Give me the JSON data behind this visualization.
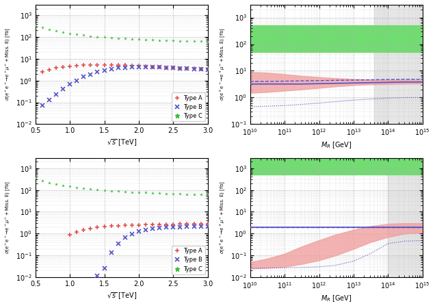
{
  "background_color": "#ffffff",
  "grid_color": "#b0b0b0",
  "gray_region_start_tr": 40000000000000.0,
  "gray_region_start_br": 100000000000000.0,
  "top_left": {
    "xlim": [
      0.5,
      3.0
    ],
    "ylim": [
      0.01,
      3000
    ],
    "typeA_x": [
      0.6,
      0.7,
      0.8,
      0.9,
      1.0,
      1.1,
      1.2,
      1.3,
      1.4,
      1.5,
      1.6,
      1.7,
      1.8,
      1.9,
      2.0,
      2.1,
      2.2,
      2.3,
      2.4,
      2.5,
      2.6,
      2.7,
      2.8,
      2.9,
      3.0
    ],
    "typeA_y": [
      2.5,
      3.2,
      3.8,
      4.2,
      4.5,
      4.8,
      5.0,
      5.1,
      5.2,
      5.3,
      5.2,
      5.1,
      5.0,
      4.9,
      4.7,
      4.5,
      4.3,
      4.2,
      4.0,
      3.9,
      3.7,
      3.6,
      3.5,
      3.4,
      3.3
    ],
    "typeB_x": [
      0.6,
      0.7,
      0.8,
      0.9,
      1.0,
      1.1,
      1.2,
      1.3,
      1.4,
      1.5,
      1.6,
      1.7,
      1.8,
      1.9,
      2.0,
      2.1,
      2.2,
      2.3,
      2.4,
      2.5,
      2.6,
      2.7,
      2.8,
      2.9,
      3.0
    ],
    "typeB_y": [
      0.07,
      0.13,
      0.23,
      0.4,
      0.7,
      1.0,
      1.5,
      1.9,
      2.5,
      3.0,
      3.4,
      3.8,
      4.0,
      4.2,
      4.3,
      4.3,
      4.2,
      4.1,
      4.0,
      3.8,
      3.7,
      3.5,
      3.4,
      3.3,
      3.2
    ],
    "typeC_x": [
      0.5,
      0.6,
      0.7,
      0.8,
      0.9,
      1.0,
      1.1,
      1.2,
      1.3,
      1.4,
      1.5,
      1.6,
      1.7,
      1.8,
      1.9,
      2.0,
      2.1,
      2.2,
      2.3,
      2.4,
      2.5,
      2.6,
      2.7,
      2.8,
      2.9,
      3.0
    ],
    "typeC_y": [
      350,
      270,
      220,
      190,
      165,
      145,
      130,
      120,
      110,
      103,
      97,
      92,
      88,
      84,
      81,
      78,
      76,
      74,
      72,
      70,
      68,
      67,
      65,
      64,
      63,
      62
    ]
  },
  "bottom_left": {
    "xlim": [
      0.5,
      3.0
    ],
    "ylim": [
      0.01,
      3000
    ],
    "typeA_x": [
      1.0,
      1.1,
      1.2,
      1.3,
      1.4,
      1.5,
      1.6,
      1.7,
      1.8,
      1.9,
      2.0,
      2.1,
      2.2,
      2.3,
      2.4,
      2.5,
      2.6,
      2.7,
      2.8,
      2.9,
      3.0
    ],
    "typeA_y": [
      0.9,
      1.2,
      1.5,
      1.7,
      1.9,
      2.1,
      2.2,
      2.3,
      2.4,
      2.5,
      2.5,
      2.6,
      2.6,
      2.7,
      2.7,
      2.7,
      2.8,
      2.8,
      2.8,
      2.8,
      2.8
    ],
    "typeB_x": [
      1.4,
      1.5,
      1.6,
      1.7,
      1.8,
      1.9,
      2.0,
      2.1,
      2.2,
      2.3,
      2.4,
      2.5,
      2.6,
      2.7,
      2.8,
      2.9,
      3.0
    ],
    "typeB_y": [
      0.012,
      0.025,
      0.14,
      0.35,
      0.65,
      0.95,
      1.3,
      1.5,
      1.7,
      1.8,
      1.9,
      1.95,
      2.0,
      2.05,
      2.1,
      2.1,
      2.1
    ],
    "typeC_x": [
      0.5,
      0.6,
      0.7,
      0.8,
      0.9,
      1.0,
      1.1,
      1.2,
      1.3,
      1.4,
      1.5,
      1.6,
      1.7,
      1.8,
      1.9,
      2.0,
      2.1,
      2.2,
      2.3,
      2.4,
      2.5,
      2.6,
      2.7,
      2.8,
      2.9,
      3.0
    ],
    "typeC_y": [
      350,
      270,
      220,
      190,
      165,
      145,
      130,
      120,
      110,
      103,
      97,
      92,
      88,
      84,
      81,
      78,
      76,
      74,
      72,
      70,
      68,
      67,
      65,
      64,
      63,
      62
    ]
  },
  "top_right": {
    "xlim_log": [
      10000000000.0,
      1000000000000000.0
    ],
    "ylim": [
      0.1,
      3000
    ],
    "green_band_lo": 50,
    "green_band_hi": 500,
    "band_x": [
      10000000000.0,
      30000000000.0,
      100000000000.0,
      300000000000.0,
      1000000000000.0,
      3000000000000.0,
      10000000000000.0,
      30000000000000.0,
      100000000000000.0,
      300000000000000.0,
      1000000000000000.0
    ],
    "red_band_hi": [
      9.0,
      8.5,
      7.5,
      6.5,
      5.8,
      5.3,
      4.9,
      4.7,
      4.6,
      4.6,
      4.5
    ],
    "red_band_lo": [
      1.5,
      1.6,
      1.8,
      2.0,
      2.3,
      2.6,
      2.9,
      3.1,
      3.2,
      3.3,
      3.4
    ],
    "solid_x": [
      10000000000.0,
      30000000000.0,
      100000000000.0,
      300000000000.0,
      1000000000000.0,
      3000000000000.0,
      10000000000000.0,
      30000000000000.0,
      100000000000000.0,
      300000000000000.0,
      1000000000000000.0
    ],
    "solid_y": [
      3.2,
      3.2,
      3.2,
      3.2,
      3.3,
      3.4,
      3.5,
      3.6,
      3.7,
      3.8,
      3.8
    ],
    "dashed_y": [
      4.0,
      4.0,
      4.1,
      4.2,
      4.3,
      4.4,
      4.5,
      4.6,
      4.7,
      4.8,
      4.8
    ],
    "dotted_y": [
      0.45,
      0.47,
      0.5,
      0.55,
      0.62,
      0.7,
      0.8,
      0.88,
      0.95,
      1.0,
      1.0
    ]
  },
  "bottom_right": {
    "xlim_log": [
      10000000000.0,
      1000000000000000.0
    ],
    "ylim": [
      0.01,
      3000
    ],
    "green_band_lo": 500,
    "green_band_hi": 3000,
    "band_x": [
      10000000000.0,
      30000000000.0,
      100000000000.0,
      300000000000.0,
      1000000000000.0,
      3000000000000.0,
      10000000000000.0,
      30000000000000.0,
      100000000000000.0,
      300000000000000.0,
      1000000000000000.0
    ],
    "red_band_hi": [
      0.05,
      0.07,
      0.12,
      0.25,
      0.5,
      0.9,
      1.5,
      2.2,
      2.8,
      3.0,
      3.0
    ],
    "red_band_lo": [
      0.025,
      0.027,
      0.03,
      0.04,
      0.06,
      0.1,
      0.2,
      0.4,
      0.7,
      1.0,
      1.1
    ],
    "solid_x": [
      10000000000.0,
      30000000000.0,
      100000000000.0,
      300000000000.0,
      1000000000000.0,
      3000000000000.0,
      10000000000000.0,
      30000000000000.0,
      100000000000000.0,
      300000000000000.0,
      1000000000000000.0
    ],
    "solid_y": [
      2.0,
      2.0,
      2.0,
      2.0,
      2.0,
      2.0,
      2.0,
      2.0,
      2.0,
      2.0,
      2.0
    ],
    "dashed_y": [
      2.0,
      2.0,
      2.0,
      2.0,
      2.0,
      2.0,
      2.0,
      2.0,
      2.0,
      2.0,
      2.0
    ],
    "dotted_y": [
      0.025,
      0.026,
      0.027,
      0.028,
      0.03,
      0.035,
      0.055,
      0.12,
      0.35,
      0.45,
      0.48
    ]
  },
  "color_A": "#e05050",
  "color_B": "#5050c8",
  "color_C": "#30c030",
  "color_red_band": "#f0a0a0",
  "color_green_band": "#70dd70"
}
